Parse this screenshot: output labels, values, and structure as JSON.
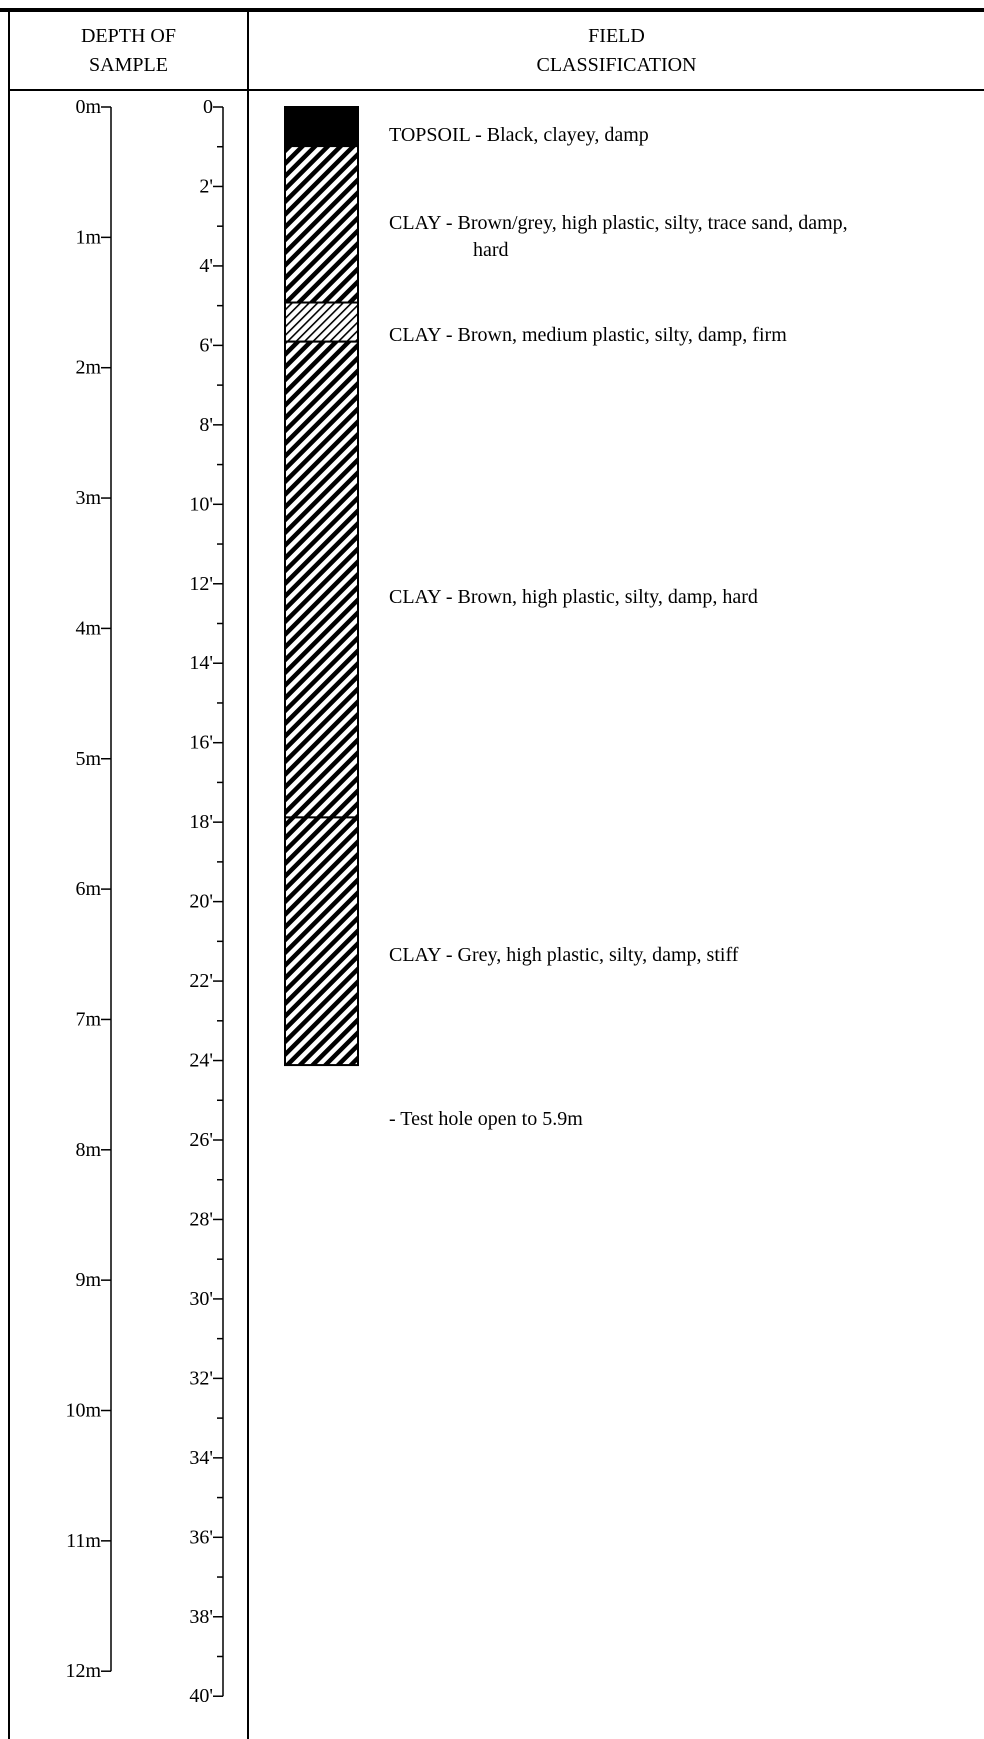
{
  "header": {
    "depth_line1": "DEPTH OF",
    "depth_line2": "SAMPLE",
    "class_line1": "FIELD",
    "class_line2": "CLASSIFICATION"
  },
  "scale": {
    "metric_labels": [
      "0m",
      "1m",
      "2m",
      "3m",
      "4m",
      "5m",
      "6m",
      "7m",
      "8m",
      "9m",
      "10m",
      "11m",
      "12m"
    ],
    "feet_labels": [
      "0",
      "2'",
      "4'",
      "6'",
      "8'",
      "10'",
      "12'",
      "14'",
      "16'",
      "18'",
      "20'",
      "22'",
      "24'",
      "26'",
      "28'",
      "30'",
      "32'",
      "34'",
      "36'",
      "38'",
      "40'"
    ]
  },
  "layers": [
    {
      "top_m": 0.0,
      "bottom_m": 0.3,
      "pattern": "solid-black"
    },
    {
      "top_m": 0.3,
      "bottom_m": 1.5,
      "pattern": "dense-diagonal-hatch"
    },
    {
      "top_m": 1.5,
      "bottom_m": 1.8,
      "pattern": "fine-diagonal-hatch"
    },
    {
      "top_m": 1.8,
      "bottom_m": 5.45,
      "pattern": "dense-diagonal-hatch"
    },
    {
      "top_m": 5.45,
      "bottom_m": 7.35,
      "pattern": "dense-diagonal-hatch"
    }
  ],
  "descriptions": [
    {
      "line1": "TOPSOIL - Black, clayey, damp"
    },
    {
      "line1": "CLAY - Brown/grey, high plastic, silty, trace sand, damp,",
      "line2": "hard"
    },
    {
      "line1": "CLAY - Brown, medium plastic, silty, damp, firm"
    },
    {
      "line1": "CLAY - Brown, high plastic, silty, damp, hard"
    },
    {
      "line1": "CLAY - Grey, high plastic, silty, damp, stiff"
    },
    {
      "line1": "- Test hole open to 5.9m"
    }
  ]
}
